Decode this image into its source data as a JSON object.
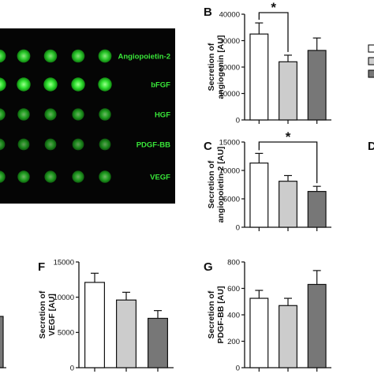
{
  "figure": {
    "array": {
      "rows": [
        "Angiopoietin-2",
        "bFGF",
        "HGF",
        "PDGF-BB",
        "VEGF"
      ],
      "brightness": [
        [
          0.85,
          0.85,
          0.8,
          0.8,
          0.85
        ],
        [
          1.0,
          1.0,
          1.0,
          1.0,
          1.0
        ],
        [
          0.55,
          0.55,
          0.5,
          0.5,
          0.55
        ],
        [
          0.4,
          0.4,
          0.4,
          0.4,
          0.4
        ],
        [
          0.55,
          0.55,
          0.5,
          0.5,
          0.55
        ]
      ]
    },
    "legend_colors": [
      "#ffffff",
      "#cccccc",
      "#777777"
    ],
    "partial_letter": "D"
  },
  "chart_data": [
    {
      "panel": "B",
      "type": "bar",
      "ylabel": "Secretion of\nangiogenin [AU]",
      "ylim": [
        0,
        40000
      ],
      "yticks": [
        "0",
        "10000",
        "20000",
        "30000",
        "40000"
      ],
      "values": [
        32500,
        22000,
        26300
      ],
      "errors": [
        4200,
        2500,
        4700
      ],
      "colors": [
        "#ffffff",
        "#cccccc",
        "#777777"
      ],
      "significance": {
        "from": 0,
        "to": 1,
        "label": "*"
      }
    },
    {
      "panel": "C",
      "type": "bar",
      "ylabel": "Secretion of\nangiopoietin-2 [AU]",
      "ylim": [
        0,
        15000
      ],
      "yticks": [
        "0",
        "5000",
        "10000",
        "15000"
      ],
      "values": [
        11300,
        8100,
        6300
      ],
      "errors": [
        1700,
        1000,
        900
      ],
      "colors": [
        "#ffffff",
        "#cccccc",
        "#777777"
      ],
      "significance": {
        "from": 0,
        "to": 2,
        "label": "*"
      }
    },
    {
      "panel": "F",
      "type": "bar",
      "ylabel": "Secretion of\nVEGF [AU]",
      "ylim": [
        0,
        15000
      ],
      "yticks": [
        "0",
        "5000",
        "10000",
        "15000"
      ],
      "values": [
        12100,
        9600,
        7000
      ],
      "errors": [
        1300,
        1100,
        1100
      ],
      "colors": [
        "#ffffff",
        "#cccccc",
        "#777777"
      ]
    },
    {
      "panel": "G",
      "type": "bar",
      "ylabel": "Secretion of\nPDGF-BB [AU]",
      "ylim": [
        0,
        800
      ],
      "yticks": [
        "0",
        "200",
        "400",
        "600",
        "800"
      ],
      "values": [
        525,
        470,
        630
      ],
      "errors": [
        60,
        55,
        105
      ],
      "colors": [
        "#ffffff",
        "#cccccc",
        "#777777"
      ]
    }
  ]
}
